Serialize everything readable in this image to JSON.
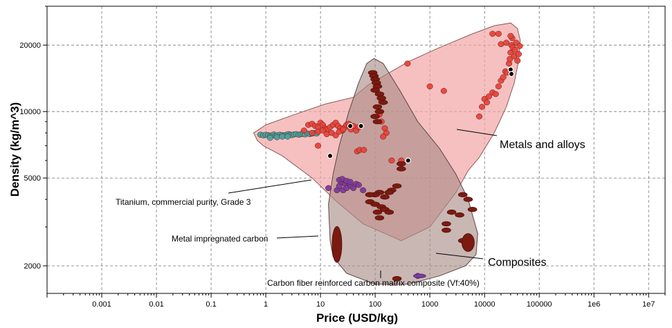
{
  "chart_data": {
    "type": "scatter",
    "title": "",
    "xlabel": "Price (USD/kg)",
    "ylabel": "Density (kg/m^3)",
    "xscale": "log",
    "yscale": "log",
    "xlim": [
      0.0001,
      20000000
    ],
    "ylim": [
      1500,
      30000
    ],
    "x_ticks": [
      "0.001",
      "0.01",
      "0.1",
      "1",
      "10",
      "100",
      "1000",
      "10000",
      "100000",
      "1e6",
      "1e7"
    ],
    "y_ticks": [
      "2000",
      "5000",
      "10000",
      "20000"
    ],
    "grid": true,
    "colors": {
      "metals": "#e8433a",
      "steels": "#4aa3a0",
      "titanium": "#7a3aa0",
      "composites": "#7b1a10",
      "highlight": "#000000",
      "metals_envelope": "#f2a5a5",
      "composites_envelope": "#a88a86"
    },
    "regions": [
      {
        "name": "Metals and alloys"
      },
      {
        "name": "Composites"
      }
    ],
    "annotations": [
      {
        "text": "Metals and alloys"
      },
      {
        "text": "Composites"
      },
      {
        "text": "Titanium, commercial purity, Grade 3"
      },
      {
        "text": "Metal impregnated carbon"
      },
      {
        "text": "Carbon fiber reinforced carbon matrix composite (Vf:40%)"
      }
    ],
    "series": [
      {
        "group": "steels",
        "points": [
          [
            0.8,
            7850
          ],
          [
            0.9,
            7800
          ],
          [
            1.0,
            7850
          ],
          [
            1.1,
            7820
          ],
          [
            1.2,
            7750
          ],
          [
            1.3,
            7800
          ],
          [
            1.4,
            7870
          ],
          [
            1.5,
            7760
          ],
          [
            1.6,
            7800
          ],
          [
            1.8,
            7850
          ],
          [
            2.0,
            7820
          ],
          [
            2.2,
            7800
          ],
          [
            2.4,
            7850
          ],
          [
            2.6,
            7900
          ],
          [
            2.8,
            7860
          ],
          [
            3.0,
            7820
          ],
          [
            3.3,
            7880
          ],
          [
            3.6,
            7900
          ],
          [
            4.0,
            7850
          ],
          [
            4.4,
            7900
          ],
          [
            4.8,
            7920
          ],
          [
            5.2,
            7880
          ],
          [
            5.8,
            7950
          ],
          [
            6.4,
            7900
          ],
          [
            7.0,
            7950
          ],
          [
            7.8,
            8000
          ],
          [
            8.5,
            7950
          ],
          [
            1.2,
            7600
          ],
          [
            1.6,
            7650
          ],
          [
            2.0,
            7700
          ],
          [
            2.5,
            7700
          ]
        ]
      },
      {
        "group": "metals",
        "points": [
          [
            6,
            8700
          ],
          [
            7,
            8800
          ],
          [
            8,
            8600
          ],
          [
            9,
            8500
          ],
          [
            10,
            8900
          ],
          [
            11,
            8700
          ],
          [
            12,
            8400
          ],
          [
            13,
            8300
          ],
          [
            15,
            8500
          ],
          [
            17,
            8700
          ],
          [
            19,
            8900
          ],
          [
            21,
            8600
          ],
          [
            23,
            8400
          ],
          [
            25,
            8200
          ],
          [
            28,
            8500
          ],
          [
            30,
            8700
          ],
          [
            33,
            8800
          ],
          [
            36,
            8300
          ],
          [
            40,
            8600
          ],
          [
            45,
            8200
          ],
          [
            50,
            8500
          ],
          [
            5,
            8200
          ],
          [
            7,
            8000
          ],
          [
            9,
            8100
          ],
          [
            11,
            8200
          ],
          [
            13,
            7900
          ],
          [
            16,
            8000
          ],
          [
            19,
            7800
          ],
          [
            22,
            8100
          ],
          [
            26,
            8300
          ],
          [
            9,
            7000
          ],
          [
            47,
            6600
          ],
          [
            52,
            6700
          ],
          [
            62,
            6700
          ],
          [
            120,
            9700
          ],
          [
            130,
            9000
          ],
          [
            150,
            8400
          ],
          [
            160,
            8000
          ],
          [
            140,
            7700
          ],
          [
            130,
            11200
          ],
          [
            200,
            6000
          ],
          [
            300,
            6000
          ],
          [
            390,
            16500
          ],
          [
            1000,
            13000
          ],
          [
            1800,
            12400
          ],
          [
            8000,
            9500
          ],
          [
            9000,
            10500
          ],
          [
            10000,
            11400
          ],
          [
            11000,
            11000
          ],
          [
            12000,
            11700
          ],
          [
            14000,
            12200
          ],
          [
            16000,
            12000
          ],
          [
            18000,
            13000
          ],
          [
            20000,
            13800
          ],
          [
            22000,
            14300
          ],
          [
            24000,
            15200
          ],
          [
            26000,
            15000
          ],
          [
            28000,
            16500
          ],
          [
            29000,
            17300
          ],
          [
            30000,
            18500
          ],
          [
            31000,
            20000
          ],
          [
            32000,
            21500
          ],
          [
            33000,
            19500
          ],
          [
            35000,
            17800
          ],
          [
            36000,
            19000
          ],
          [
            38000,
            20500
          ],
          [
            40000,
            17000
          ],
          [
            42000,
            18200
          ],
          [
            44000,
            19800
          ],
          [
            14000,
            22500
          ],
          [
            18000,
            22500
          ],
          [
            30000,
            22000
          ],
          [
            20000,
            20200
          ],
          [
            25000,
            20500
          ]
        ]
      },
      {
        "group": "titanium",
        "points": [
          [
            14,
            4500
          ],
          [
            20,
            4400
          ],
          [
            22,
            4600
          ],
          [
            24,
            4800
          ],
          [
            26,
            4400
          ],
          [
            28,
            4700
          ],
          [
            30,
            4500
          ],
          [
            33,
            4750
          ],
          [
            36,
            4600
          ],
          [
            40,
            4500
          ],
          [
            45,
            4700
          ],
          [
            50,
            4650
          ],
          [
            60,
            4400
          ],
          [
            22,
            4900
          ],
          [
            25,
            4950
          ],
          [
            30,
            4850
          ],
          [
            35,
            4800
          ],
          [
            600,
            1800
          ]
        ]
      },
      {
        "group": "composites",
        "points": [
          [
            90,
            15000
          ],
          [
            95,
            14500
          ],
          [
            100,
            14000
          ],
          [
            105,
            13500
          ],
          [
            110,
            13000
          ],
          [
            100,
            12500
          ],
          [
            120,
            12000
          ],
          [
            130,
            11500
          ],
          [
            140,
            11000
          ],
          [
            110,
            10500
          ],
          [
            120,
            10000
          ],
          [
            100,
            9500
          ],
          [
            110,
            9000
          ],
          [
            300,
            5800
          ],
          [
            300,
            5500
          ],
          [
            250,
            4600
          ],
          [
            200,
            4400
          ],
          [
            180,
            4300
          ],
          [
            150,
            4100
          ],
          [
            120,
            4300
          ],
          [
            100,
            4200
          ],
          [
            80,
            4200
          ],
          [
            80,
            3900
          ],
          [
            100,
            3800
          ],
          [
            130,
            3700
          ],
          [
            150,
            3600
          ],
          [
            180,
            3500
          ],
          [
            110,
            3500
          ],
          [
            120,
            3300
          ],
          [
            4000,
            4200
          ],
          [
            5000,
            4000
          ],
          [
            6000,
            3600
          ],
          [
            2500,
            3500
          ],
          [
            3500,
            3400
          ],
          [
            2000,
            3100
          ],
          [
            2000,
            2900
          ],
          [
            4000,
            2600
          ],
          [
            5000,
            2600
          ],
          [
            250,
            1750
          ],
          [
            20,
            2500
          ]
        ]
      },
      {
        "group": "highlight",
        "points": [
          [
            15,
            6300
          ],
          [
            35,
            8600
          ],
          [
            400,
            6000
          ],
          [
            30000,
            15500
          ],
          [
            31000,
            14800
          ],
          [
            55,
            8600
          ]
        ]
      }
    ]
  }
}
